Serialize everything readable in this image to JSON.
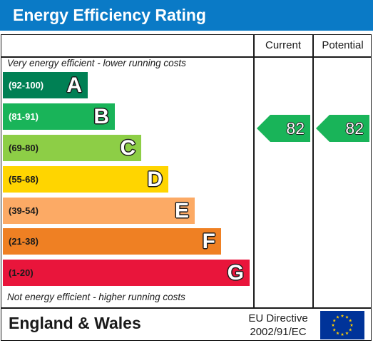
{
  "header": {
    "title": "Energy Efficiency Rating"
  },
  "columns": {
    "current": "Current",
    "potential": "Potential"
  },
  "notes": {
    "top": "Very energy efficient - lower running costs",
    "bottom": "Not energy efficient - higher running costs"
  },
  "chart_data": {
    "type": "bar",
    "title": "Energy Efficiency Rating",
    "categories": [
      "A",
      "B",
      "C",
      "D",
      "E",
      "F",
      "G"
    ],
    "ranges": [
      "(92-100)",
      "(81-91)",
      "(69-80)",
      "(55-68)",
      "(39-54)",
      "(21-38)",
      "(1-20)"
    ],
    "colors": [
      "#008054",
      "#19b459",
      "#8dce46",
      "#ffd500",
      "#fcaa65",
      "#ef8023",
      "#e9153b"
    ],
    "current": 82,
    "potential": 82,
    "current_band": "B",
    "potential_band": "B"
  },
  "footer": {
    "region": "England & Wales",
    "directive_line1": "EU Directive",
    "directive_line2": "2002/91/EC"
  },
  "colors": {
    "header": "#0a7ac6",
    "flag_blue": "#003399",
    "flag_star": "#ffcc00"
  }
}
